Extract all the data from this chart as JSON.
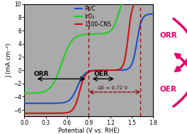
{
  "xlim": [
    0.0,
    1.8
  ],
  "ylim": [
    -7,
    10
  ],
  "xlabel": "Potential (V vs. RHE)",
  "ylabel": "J (mA cm⁻²)",
  "yticks": [
    -6,
    -4,
    -2,
    0,
    2,
    4,
    6,
    8,
    10
  ],
  "xticks": [
    0.0,
    0.3,
    0.6,
    0.9,
    1.2,
    1.5,
    1.8
  ],
  "line_colors": {
    "PtC": "#1a4fcc",
    "IrO2": "#22cc22",
    "CNS": "#cc1111"
  },
  "legend_labels": [
    "Pt/C",
    "IrO₂",
    "1100-CNS"
  ],
  "orr_label": "ORR",
  "oer_label": "OER",
  "delta_e_label": "ΔE = 0.72 V",
  "vline1": 0.9,
  "vline2": 1.62,
  "plot_bgcolor": "#aaaaaa",
  "fig_bgcolor": "#ffffff",
  "right_panel_bgcolor": "#f8e8f0",
  "figsize": [
    2.64,
    1.89
  ],
  "dpi": 100,
  "orr_right_color": "#e8006a",
  "oer_right_color": "#e8006a"
}
